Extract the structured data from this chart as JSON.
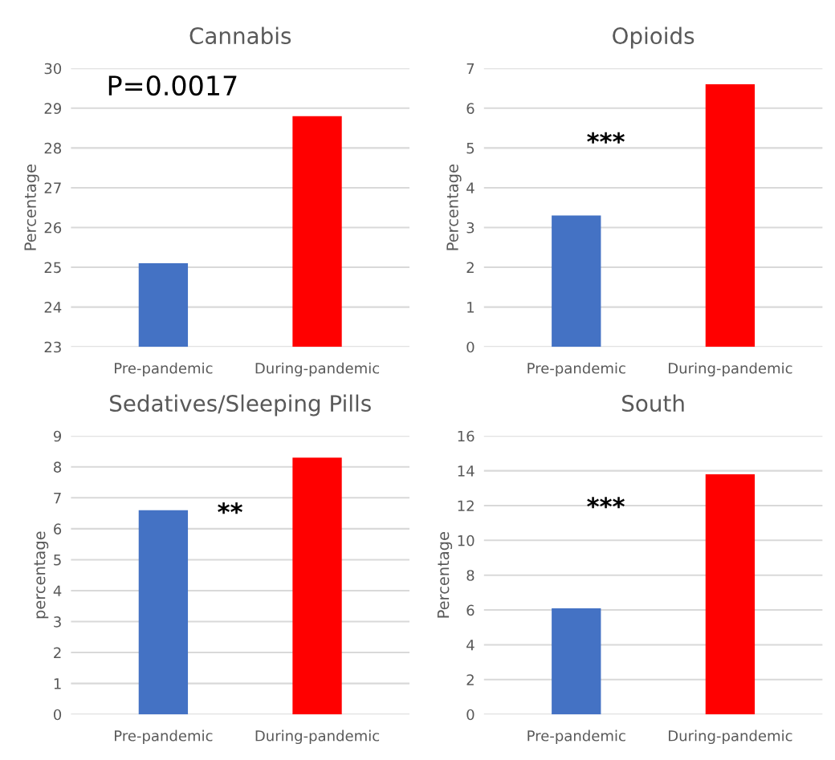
{
  "chart_data": [
    {
      "type": "bar",
      "title": "Cannabis",
      "ylabel": "Percentage",
      "categories": [
        "Pre-pandemic",
        "During-pandemic"
      ],
      "values": [
        25.1,
        28.8
      ],
      "colors": [
        "#4472c4",
        "#ff0000"
      ],
      "ylim": [
        23,
        30
      ],
      "yticks": [
        23,
        24,
        25,
        26,
        27,
        28,
        29,
        30
      ],
      "grid": "y",
      "annotations": [
        "P=0.0017"
      ]
    },
    {
      "type": "bar",
      "title": "Opioids",
      "ylabel": "Percentage",
      "categories": [
        "Pre-pandemic",
        "During-pandemic"
      ],
      "values": [
        3.3,
        6.6
      ],
      "colors": [
        "#4472c4",
        "#ff0000"
      ],
      "ylim": [
        0,
        7
      ],
      "yticks": [
        0,
        1,
        2,
        3,
        4,
        5,
        6,
        7
      ],
      "grid": "y",
      "annotations": [
        "***"
      ]
    },
    {
      "type": "bar",
      "title": "Sedatives/Sleeping Pills",
      "ylabel": "percentage",
      "categories": [
        "Pre-pandemic",
        "During-pandemic"
      ],
      "values": [
        6.6,
        8.3
      ],
      "colors": [
        "#4472c4",
        "#ff0000"
      ],
      "ylim": [
        0,
        9
      ],
      "yticks": [
        0,
        1,
        2,
        3,
        4,
        5,
        6,
        7,
        8,
        9
      ],
      "grid": "y",
      "annotations": [
        "**"
      ]
    },
    {
      "type": "bar",
      "title": "South",
      "ylabel": "Percentage",
      "categories": [
        "Pre-pandemic",
        "During-pandemic"
      ],
      "values": [
        6.1,
        13.8
      ],
      "colors": [
        "#4472c4",
        "#ff0000"
      ],
      "ylim": [
        0,
        16
      ],
      "yticks": [
        0,
        2,
        4,
        6,
        8,
        10,
        12,
        14,
        16
      ],
      "grid": "y",
      "annotations": [
        "***"
      ]
    }
  ]
}
